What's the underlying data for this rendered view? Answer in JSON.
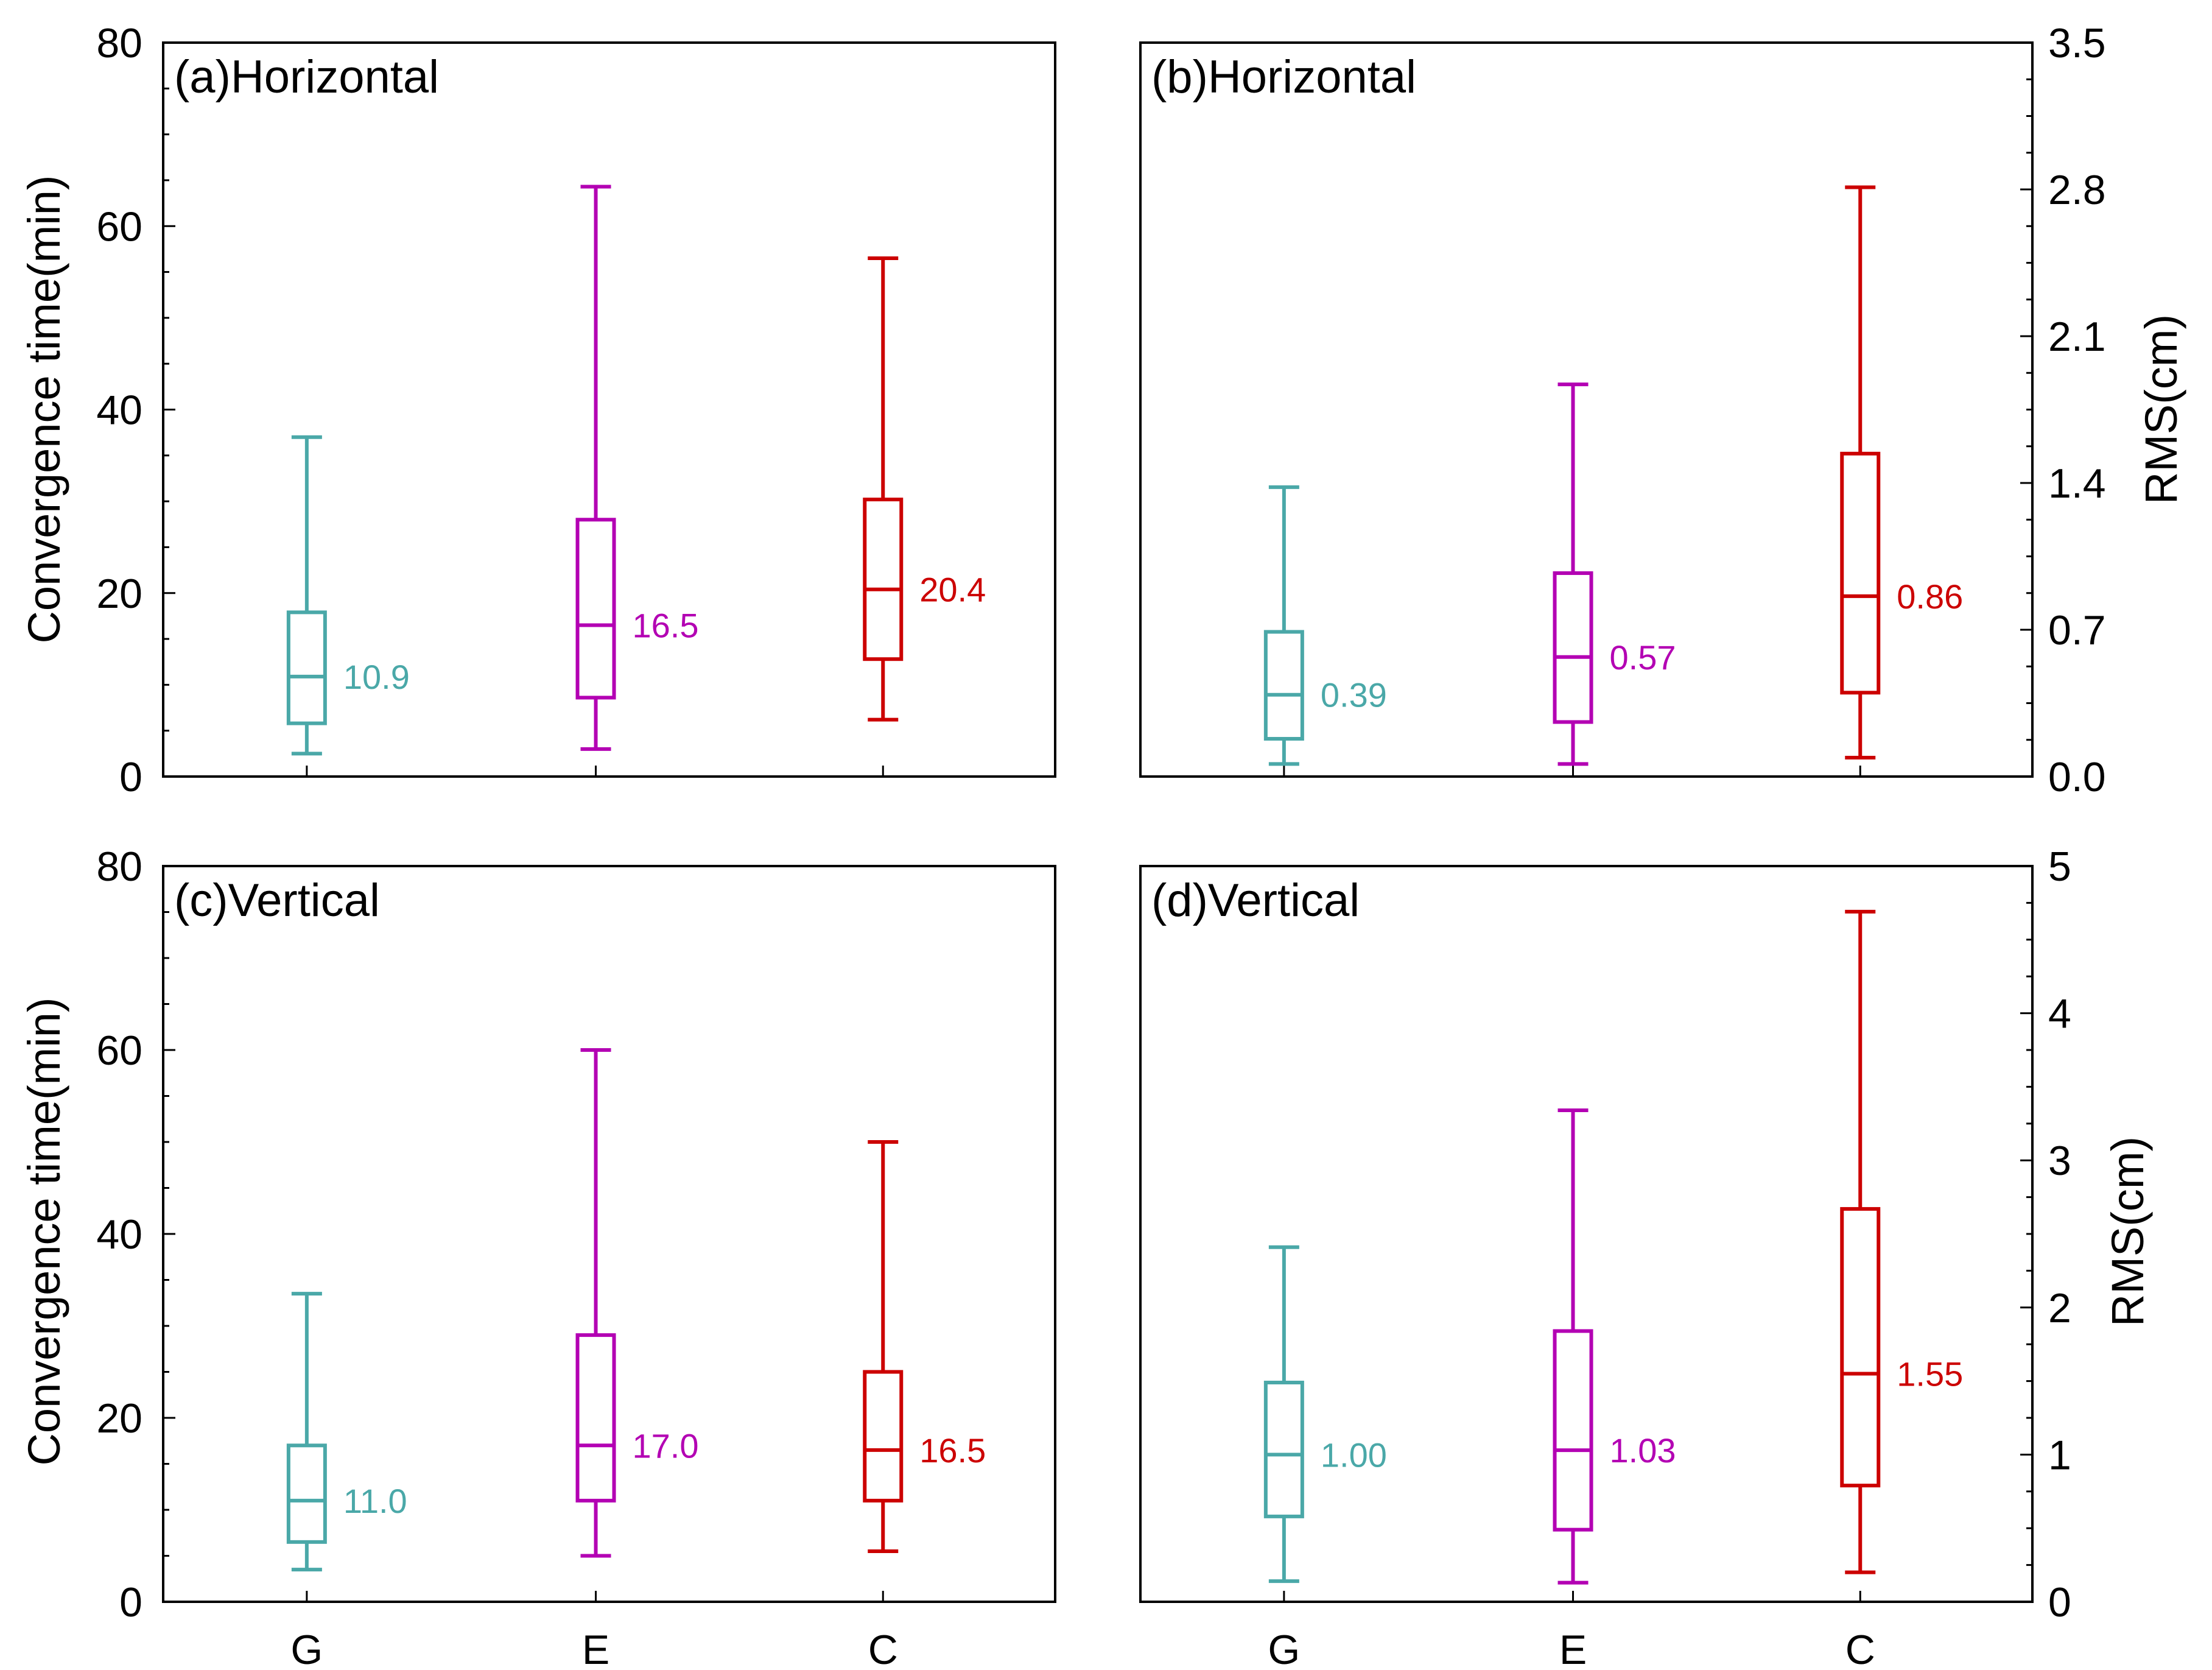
{
  "colors": {
    "G": "#4aa8a8",
    "E": "#b300b3",
    "C": "#cc0000"
  },
  "categories": [
    "G",
    "E",
    "C"
  ],
  "left_ylabel": "Convergence time(min)",
  "right_ylabel": "RMS(cm)",
  "chart_data": [
    {
      "type": "box",
      "id": "a",
      "title": "(a)Horizontal",
      "ylabel_side": "left",
      "ylim": [
        0,
        80
      ],
      "yticks": [
        0,
        20,
        40,
        60,
        80
      ],
      "ytick_labels": [
        "0",
        "20",
        "40",
        "60",
        "80"
      ],
      "minor_step": 5,
      "show_xticklabels": false,
      "boxes": [
        {
          "category": "G",
          "whisker_low": 2.5,
          "q1": 5.8,
          "median": 10.9,
          "q3": 17.9,
          "whisker_high": 37.0,
          "label": "10.9"
        },
        {
          "category": "E",
          "whisker_low": 3.0,
          "q1": 8.6,
          "median": 16.5,
          "q3": 28.0,
          "whisker_high": 64.3,
          "label": "16.5"
        },
        {
          "category": "C",
          "whisker_low": 6.2,
          "q1": 12.8,
          "median": 20.4,
          "q3": 30.2,
          "whisker_high": 56.5,
          "label": "20.4"
        }
      ]
    },
    {
      "type": "box",
      "id": "b",
      "title": "(b)Horizontal",
      "ylabel_side": "right",
      "ylim": [
        0,
        3.5
      ],
      "yticks": [
        0,
        0.7,
        1.4,
        2.1,
        2.8,
        3.5
      ],
      "ytick_labels": [
        "0.0",
        "0.7",
        "1.4",
        "2.1",
        "2.8",
        "3.5"
      ],
      "minor_step": 0.175,
      "show_xticklabels": false,
      "boxes": [
        {
          "category": "G",
          "whisker_low": 0.06,
          "q1": 0.18,
          "median": 0.39,
          "q3": 0.69,
          "whisker_high": 1.38,
          "label": "0.39"
        },
        {
          "category": "E",
          "whisker_low": 0.06,
          "q1": 0.26,
          "median": 0.57,
          "q3": 0.97,
          "whisker_high": 1.87,
          "label": "0.57"
        },
        {
          "category": "C",
          "whisker_low": 0.09,
          "q1": 0.4,
          "median": 0.86,
          "q3": 1.54,
          "whisker_high": 2.81,
          "label": "0.86"
        }
      ]
    },
    {
      "type": "box",
      "id": "c",
      "title": "(c)Vertical",
      "ylabel_side": "left",
      "ylim": [
        0,
        80
      ],
      "yticks": [
        0,
        20,
        40,
        60,
        80
      ],
      "ytick_labels": [
        "0",
        "20",
        "40",
        "60",
        "80"
      ],
      "minor_step": 5,
      "show_xticklabels": true,
      "boxes": [
        {
          "category": "G",
          "whisker_low": 3.5,
          "q1": 6.5,
          "median": 11.0,
          "q3": 17.0,
          "whisker_high": 33.5,
          "label": "11.0"
        },
        {
          "category": "E",
          "whisker_low": 5.0,
          "q1": 11.0,
          "median": 17.0,
          "q3": 29.0,
          "whisker_high": 60.0,
          "label": "17.0"
        },
        {
          "category": "C",
          "whisker_low": 5.5,
          "q1": 11.0,
          "median": 16.5,
          "q3": 25.0,
          "whisker_high": 50.0,
          "label": "16.5"
        }
      ]
    },
    {
      "type": "box",
      "id": "d",
      "title": "(d)Vertical",
      "ylabel_side": "right",
      "ylim": [
        0,
        5
      ],
      "yticks": [
        0,
        1,
        2,
        3,
        4,
        5
      ],
      "ytick_labels": [
        "0",
        "1",
        "2",
        "3",
        "4",
        "5"
      ],
      "minor_step": 0.25,
      "show_xticklabels": true,
      "boxes": [
        {
          "category": "G",
          "whisker_low": 0.14,
          "q1": 0.58,
          "median": 1.0,
          "q3": 1.49,
          "whisker_high": 2.41,
          "label": "1.00"
        },
        {
          "category": "E",
          "whisker_low": 0.13,
          "q1": 0.49,
          "median": 1.03,
          "q3": 1.84,
          "whisker_high": 3.34,
          "label": "1.03"
        },
        {
          "category": "C",
          "whisker_low": 0.2,
          "q1": 0.79,
          "median": 1.55,
          "q3": 2.67,
          "whisker_high": 4.69,
          "label": "1.55"
        }
      ]
    }
  ]
}
